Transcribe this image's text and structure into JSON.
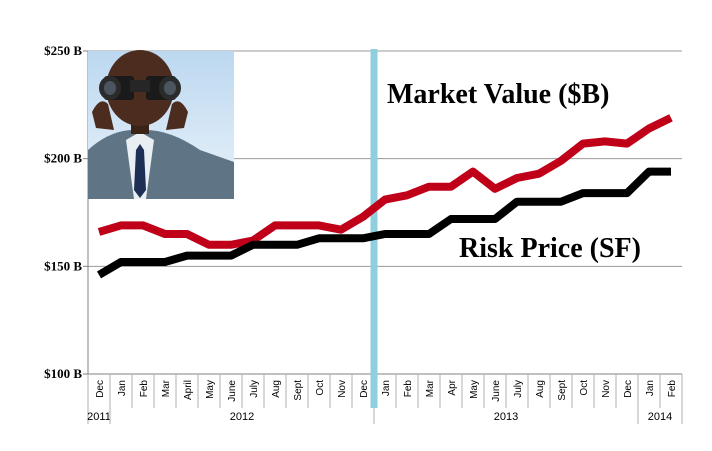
{
  "chart_data": {
    "type": "line",
    "title": "",
    "xlabel": "",
    "ylabel": "",
    "ylim": [
      100,
      250
    ],
    "y_ticks": [
      {
        "value": 100,
        "label": "$100 B"
      },
      {
        "value": 150,
        "label": "$150 B"
      },
      {
        "value": 200,
        "label": "$200 B"
      },
      {
        "value": 250,
        "label": "$250 B"
      }
    ],
    "grid": true,
    "categories": [
      "Dec",
      "Jan",
      "Feb",
      "Mar",
      "April",
      "May",
      "June",
      "July",
      "Aug",
      "Sept",
      "Oct",
      "Nov",
      "Dec",
      "Jan",
      "Feb",
      "Mar",
      "Apr",
      "May",
      "June",
      "July",
      "Aug",
      "Sept",
      "Oct",
      "Nov",
      "Dec",
      "Jan",
      "Feb"
    ],
    "year_groups": [
      {
        "label": "2011",
        "from": 0,
        "to": 0
      },
      {
        "label": "2012",
        "from": 1,
        "to": 12
      },
      {
        "label": "2013",
        "from": 13,
        "to": 24
      },
      {
        "label": "2014",
        "from": 25,
        "to": 26
      }
    ],
    "series": [
      {
        "name": "Market Value ($B)",
        "color": "#c00018",
        "values": [
          166,
          169,
          169,
          165,
          165,
          160,
          160,
          162,
          169,
          169,
          169,
          167,
          173,
          181,
          183,
          187,
          187,
          194,
          186,
          191,
          193,
          199,
          207,
          208,
          207,
          214,
          219
        ]
      },
      {
        "name": "Risk Price (SF)",
        "color": "#000000",
        "values": [
          146,
          152,
          152,
          152,
          155,
          155,
          155,
          160,
          160,
          160,
          163,
          163,
          163,
          165,
          165,
          165,
          172,
          172,
          172,
          180,
          180,
          180,
          184,
          184,
          184,
          194,
          194
        ]
      }
    ],
    "marker": {
      "after_category_index": 12,
      "color": "#8fcfe0"
    },
    "annotations": [
      "Market Value ($B)",
      "Risk Price (SF)"
    ],
    "image": "man-with-binoculars"
  }
}
